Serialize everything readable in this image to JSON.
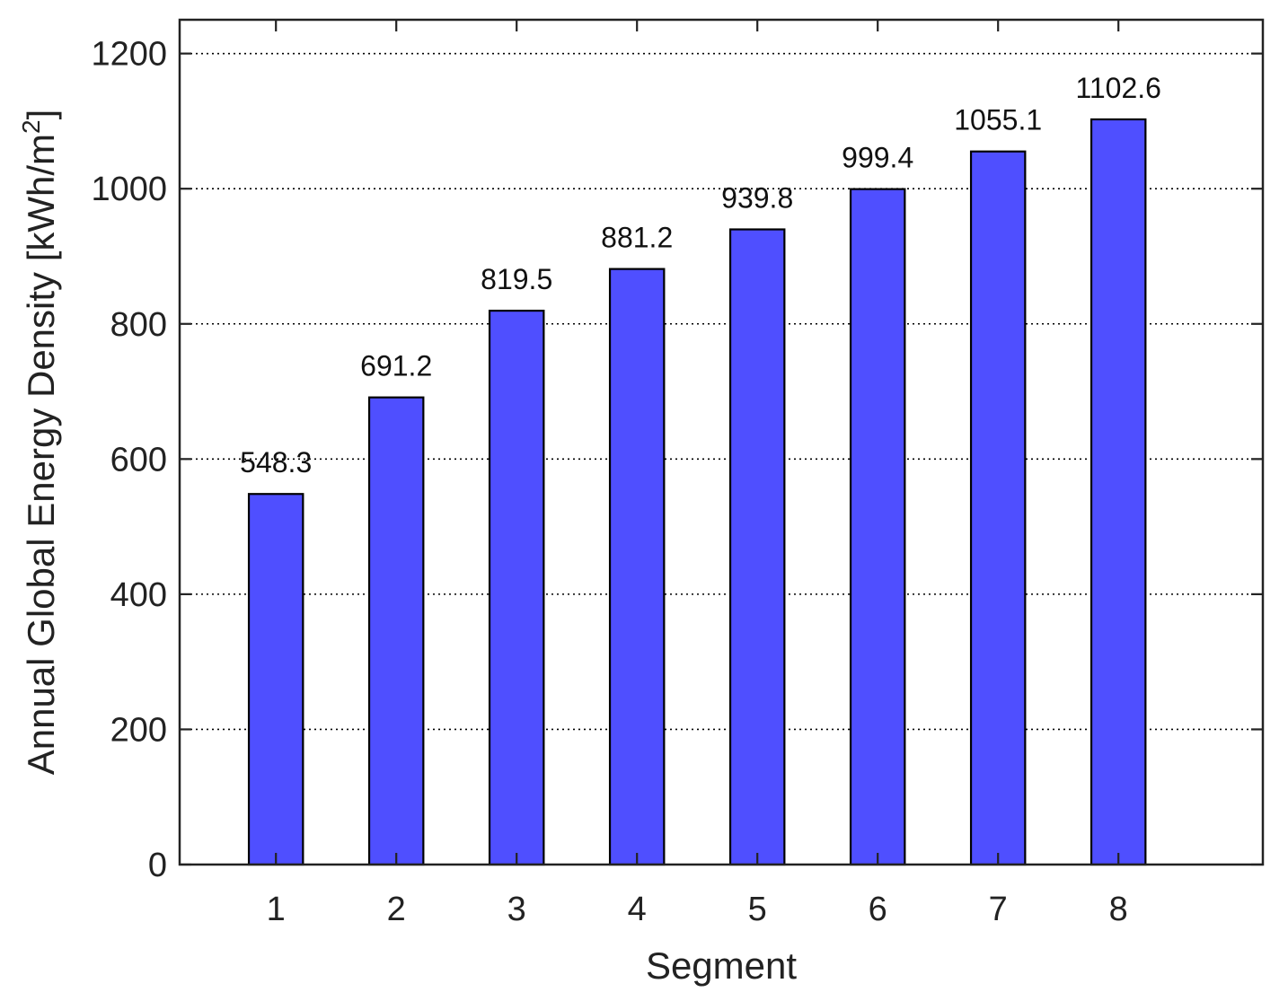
{
  "chart_data": {
    "type": "bar",
    "title": "",
    "xlabel": "Segment",
    "ylabel_main": "Annual Global Energy Density [kWh/m",
    "ylabel_sup": "2",
    "ylabel_end": "]",
    "categories": [
      "1",
      "2",
      "3",
      "4",
      "5",
      "6",
      "7",
      "8"
    ],
    "values": [
      548.3,
      691.2,
      819.5,
      881.2,
      939.8,
      999.4,
      1055.1,
      1102.6
    ],
    "value_labels": [
      "548.3",
      "691.2",
      "819.5",
      "881.2",
      "939.8",
      "999.4",
      "1055.1",
      "1102.6"
    ],
    "ylim": [
      0,
      1250
    ],
    "yticks": [
      0,
      200,
      400,
      600,
      800,
      1000,
      1200
    ],
    "ytick_labels": [
      "0",
      "200",
      "400",
      "600",
      "800",
      "1000",
      "1200"
    ],
    "xlim": [
      0.2,
      9.2
    ],
    "grid": true,
    "legend": "none",
    "bar_color": "#4f4fff",
    "bar_edge_color": "#000000"
  }
}
